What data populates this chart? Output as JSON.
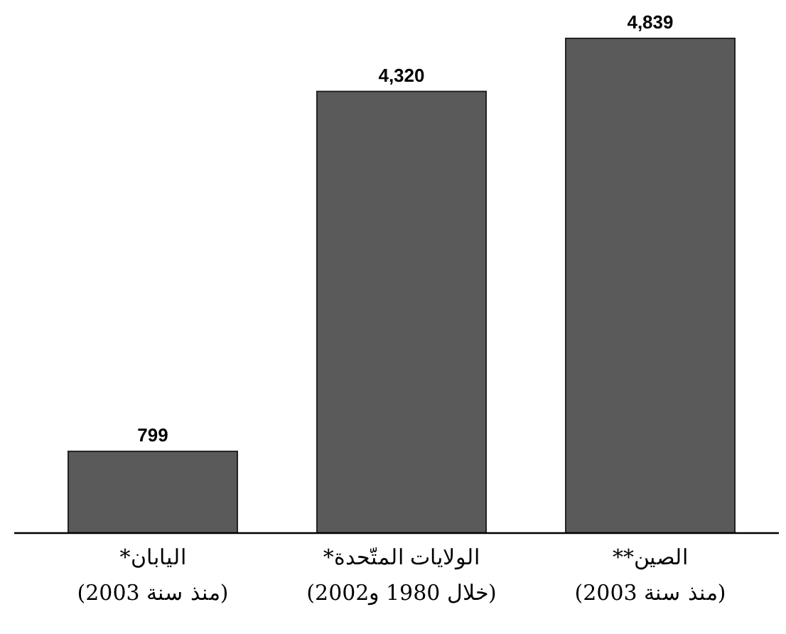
{
  "chart_data": {
    "type": "bar",
    "categories": [
      "اليابان*\n(منذ سنة 2003)",
      "الولايات المتّحدة*\n(خلال 1980 و2002)",
      "الصين**\n(منذ سنة 2003)"
    ],
    "values": [
      799,
      4320,
      4839
    ],
    "value_labels": [
      "799",
      "4,320",
      "4,839"
    ],
    "color": "#5a5a5a"
  }
}
